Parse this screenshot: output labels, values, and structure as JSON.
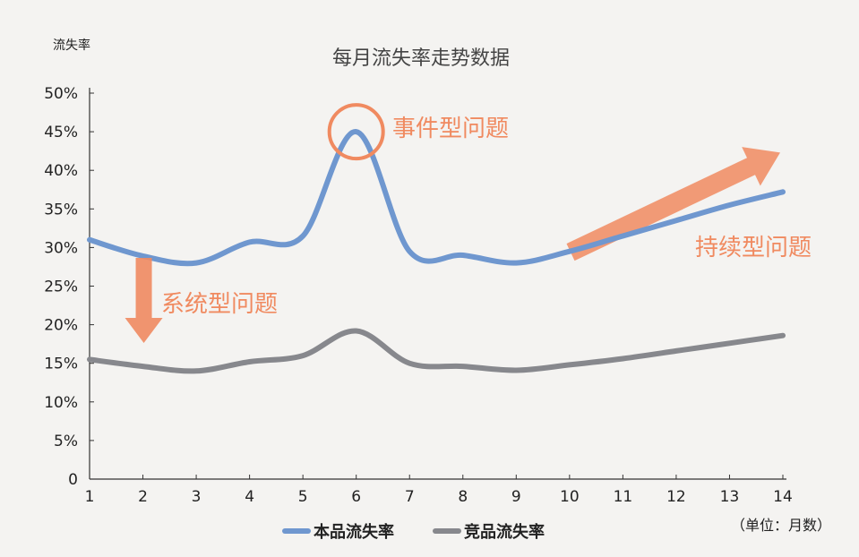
{
  "chart_data": {
    "type": "line",
    "title": "每月流失率走势数据",
    "ylabel": "流失率",
    "unit_note": "（单位：月数）",
    "x": [
      1,
      2,
      3,
      4,
      5,
      6,
      7,
      8,
      9,
      10,
      11,
      12,
      13,
      14
    ],
    "xlim": [
      1,
      14
    ],
    "ylim": [
      0,
      50
    ],
    "yticks": [
      "0",
      "5%",
      "10%",
      "15%",
      "20%",
      "25%",
      "30%",
      "35%",
      "40%",
      "45%",
      "50%"
    ],
    "series": [
      {
        "name": "本品流失率",
        "color": "#6f97cf",
        "values": [
          31,
          28.9,
          28,
          30.7,
          31.5,
          45,
          29.5,
          29,
          28,
          29.5,
          31.5,
          33.5,
          35.5,
          37.2
        ]
      },
      {
        "name": "竞品流失率",
        "color": "#87888d",
        "values": [
          15.5,
          14.6,
          14,
          15.2,
          16,
          19.2,
          15,
          14.6,
          14.1,
          14.8,
          15.6,
          16.6,
          17.6,
          18.6
        ]
      }
    ],
    "annotations": {
      "event": "事件型问题",
      "system": "系统型问题",
      "continuous": "持续型问题"
    },
    "annotation_color": "#f08a60",
    "legend_position": "bottom",
    "grid": false
  }
}
